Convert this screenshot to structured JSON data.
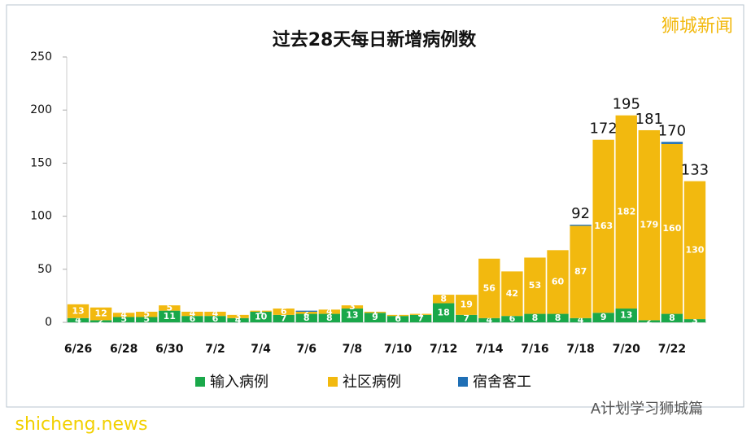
{
  "chart_data": {
    "type": "stacked_bar",
    "title": "过去28天每日新增病例数",
    "categories": [
      "6/26",
      null,
      "6/28",
      null,
      "6/30",
      null,
      "7/2",
      null,
      "7/4",
      null,
      "7/6",
      null,
      "7/8",
      null,
      "7/10",
      null,
      "7/12",
      null,
      "7/14",
      null,
      "7/16",
      null,
      "7/18",
      null,
      "7/20",
      null,
      "7/22",
      null
    ],
    "series": [
      {
        "name": "输入病例",
        "color": "#1aa84a",
        "values": [
          4,
          2,
          5,
          5,
          11,
          6,
          6,
          4,
          10,
          7,
          8,
          8,
          13,
          9,
          6,
          7,
          18,
          7,
          4,
          6,
          8,
          8,
          4,
          9,
          13,
          2,
          8,
          3
        ]
      },
      {
        "name": "社区病例",
        "color": "#f2b90f",
        "values": [
          13,
          12,
          4,
          5,
          5,
          4,
          4,
          3,
          1,
          6,
          2,
          4,
          3,
          1,
          1,
          1,
          8,
          19,
          56,
          42,
          53,
          60,
          87,
          163,
          182,
          179,
          160,
          130
        ]
      },
      {
        "name": "宿舍客工",
        "color": "#1f6fb5",
        "values": [
          0,
          0,
          0,
          0,
          0,
          0,
          0,
          0,
          0,
          0,
          1,
          0,
          0,
          0,
          0,
          0,
          0,
          0,
          0,
          0,
          0,
          0,
          1,
          0,
          0,
          0,
          2,
          0
        ]
      }
    ],
    "totals": [
      null,
      null,
      null,
      null,
      null,
      null,
      null,
      null,
      null,
      null,
      null,
      null,
      null,
      null,
      null,
      null,
      null,
      null,
      null,
      null,
      null,
      null,
      92,
      172,
      195,
      181,
      170,
      133
    ],
    "ylim": [
      0,
      250
    ],
    "yticks": [
      0,
      50,
      100,
      150,
      200,
      250
    ],
    "legend": "bottom",
    "watermark": "狮城新闻",
    "footer": "A计划学习狮城篇",
    "site": "shicheng.news"
  }
}
